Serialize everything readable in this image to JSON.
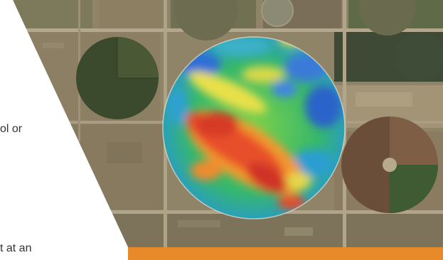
{
  "text_fragments": {
    "line_1": "ol or",
    "line_2": "t at an"
  },
  "colors": {
    "accent_bar": "#E8892A",
    "background": "#FFFFFF",
    "text": "#333333",
    "field_dark_green": "#3b4a2c",
    "field_tan": "#8a7a5e",
    "field_brown": "#6b4e3a"
  },
  "imagery": {
    "subject": "aerial-view-center-pivot-fields",
    "overlay": "yield-heatmap-circle"
  }
}
